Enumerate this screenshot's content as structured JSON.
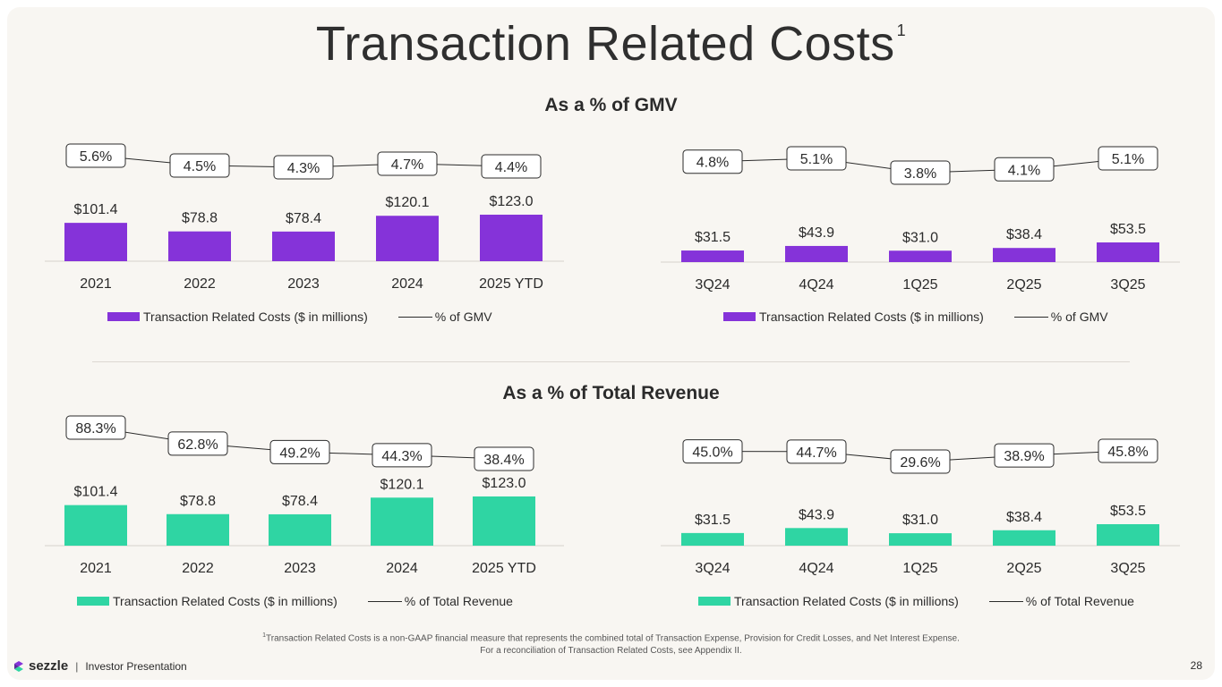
{
  "title": "Transaction Related Costs",
  "title_footnote_mark": "1",
  "sections": {
    "gmv": "As a % of GMV",
    "revenue": "As a % of Total Revenue"
  },
  "colors": {
    "purple": "#8533d9",
    "teal": "#2fd5a3"
  },
  "legend": {
    "bar_label": "Transaction Related Costs ($ in millions)",
    "line_gmv": "% of GMV",
    "line_revenue": "% of Total Revenue"
  },
  "chart_data": [
    {
      "id": "gmv_annual",
      "type": "bar+line",
      "categories": [
        "2021",
        "2022",
        "2023",
        "2024",
        "2025 YTD"
      ],
      "series": [
        {
          "name": "Transaction Related Costs ($ in millions)",
          "values": [
            101.4,
            78.8,
            78.4,
            120.1,
            123.0
          ],
          "labels": [
            "$101.4",
            "$78.8",
            "$78.4",
            "$120.1",
            "$123.0"
          ]
        },
        {
          "name": "% of GMV",
          "values": [
            5.6,
            4.5,
            4.3,
            4.7,
            4.4
          ],
          "labels": [
            "5.6%",
            "4.5%",
            "4.3%",
            "4.7%",
            "4.4%"
          ]
        }
      ]
    },
    {
      "id": "gmv_quarterly",
      "type": "bar+line",
      "categories": [
        "3Q24",
        "4Q24",
        "1Q25",
        "2Q25",
        "3Q25"
      ],
      "series": [
        {
          "name": "Transaction Related Costs ($ in millions)",
          "values": [
            31.5,
            43.9,
            31.0,
            38.4,
            53.5
          ],
          "labels": [
            "$31.5",
            "$43.9",
            "$31.0",
            "$38.4",
            "$53.5"
          ]
        },
        {
          "name": "% of GMV",
          "values": [
            4.8,
            5.1,
            3.8,
            4.1,
            5.1
          ],
          "labels": [
            "4.8%",
            "5.1%",
            "3.8%",
            "4.1%",
            "5.1%"
          ]
        }
      ]
    },
    {
      "id": "rev_annual",
      "type": "bar+line",
      "categories": [
        "2021",
        "2022",
        "2023",
        "2024",
        "2025 YTD"
      ],
      "series": [
        {
          "name": "Transaction Related Costs ($ in millions)",
          "values": [
            101.4,
            78.8,
            78.4,
            120.1,
            123.0
          ],
          "labels": [
            "$101.4",
            "$78.8",
            "$78.4",
            "$120.1",
            "$123.0"
          ]
        },
        {
          "name": "% of Total Revenue",
          "values": [
            88.3,
            62.8,
            49.2,
            44.3,
            38.4
          ],
          "labels": [
            "88.3%",
            "62.8%",
            "49.2%",
            "44.3%",
            "38.4%"
          ]
        }
      ]
    },
    {
      "id": "rev_quarterly",
      "type": "bar+line",
      "categories": [
        "3Q24",
        "4Q24",
        "1Q25",
        "2Q25",
        "3Q25"
      ],
      "series": [
        {
          "name": "Transaction Related Costs ($ in millions)",
          "values": [
            31.5,
            43.9,
            31.0,
            38.4,
            53.5
          ],
          "labels": [
            "$31.5",
            "$43.9",
            "$31.0",
            "$38.4",
            "$53.5"
          ]
        },
        {
          "name": "% of Total Revenue",
          "values": [
            45.0,
            44.7,
            29.6,
            38.9,
            45.8
          ],
          "labels": [
            "45.0%",
            "44.7%",
            "29.6%",
            "38.9%",
            "45.8%"
          ]
        }
      ]
    }
  ],
  "footnote": {
    "mark": "1",
    "line1": "Transaction Related Costs is a non-GAAP financial measure that represents the combined total of Transaction Expense, Provision for Credit Losses, and Net Interest Expense.",
    "line2": "For a reconciliation of Transaction Related Costs, see Appendix II."
  },
  "footer": {
    "brand": "sezzle",
    "separator": "|",
    "label": "Investor Presentation",
    "page_number": "28"
  }
}
